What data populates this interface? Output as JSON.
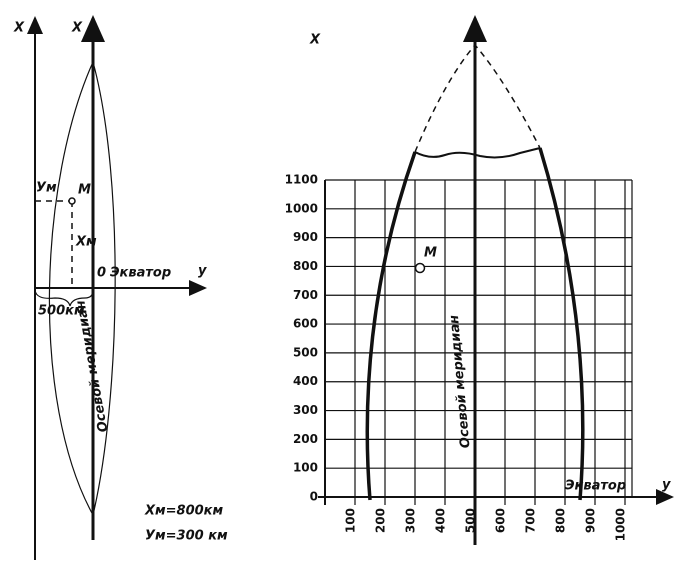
{
  "left": {
    "axis_outer": "X",
    "axis_inner": "X",
    "ym": "Ум",
    "m": "M",
    "xm": "Xм",
    "origin": "0",
    "equator": "Экватор",
    "y_axis": "y",
    "width": "500км",
    "meridian": "Осевой меридиан",
    "formula_x": "Xм=800км",
    "formula_y": "Ум=300 км"
  },
  "right": {
    "x_axis": "X",
    "m": "M",
    "meridian": "Осевой меридиан",
    "equator": "Экватор",
    "y_axis": "y",
    "yticks": [
      0,
      100,
      200,
      300,
      400,
      500,
      600,
      700,
      800,
      900,
      1000,
      1100
    ],
    "xticks": [
      100,
      200,
      300,
      400,
      500,
      600,
      700,
      800,
      900,
      1000
    ]
  }
}
